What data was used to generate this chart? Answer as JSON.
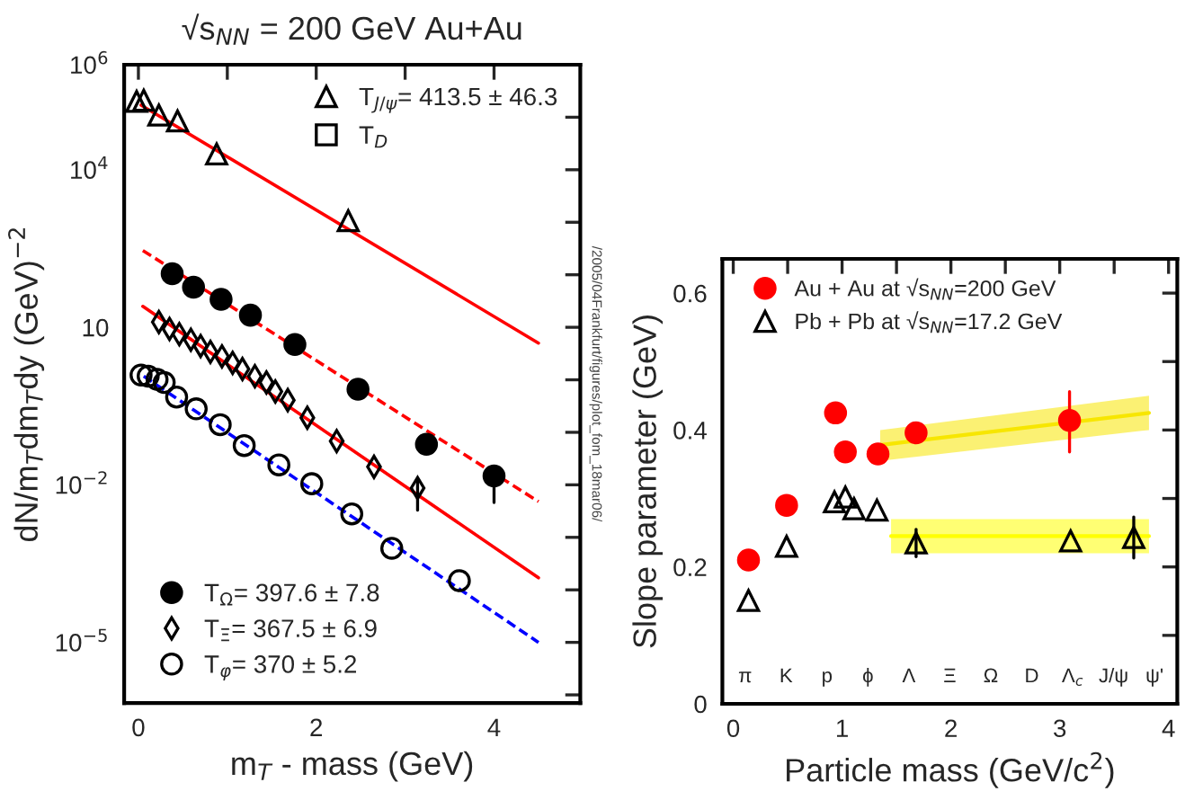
{
  "chart_data": [
    {
      "type": "scatter",
      "title": "√s$_{NN}$ = 200 GeV Au+Au",
      "xlabel": "m$_{T}$ - mass (GeV)",
      "ylabel": "dN/m$_{T}$dm$_{T}$dy (GeV)$^{−2}$",
      "log": "y",
      "legend": "top right",
      "xlim": [
        -0.16,
        4.97
      ],
      "xticks": [
        0,
        {
          "value": 1,
          "label": null
        },
        2,
        {
          "value": 3,
          "label": null
        },
        4
      ],
      "ylim": [
        7e-07,
        1000000.0
      ],
      "yticks": [
        {
          "value": 1e-06,
          "label": null
        },
        {
          "value": 1e-05,
          "label": "10$^{−5}$"
        },
        {
          "value": 0.0001,
          "label": null
        },
        {
          "value": 0.001,
          "label": null
        },
        {
          "value": 0.01,
          "label": "10$^{−2}$"
        },
        {
          "value": 0.1,
          "label": null
        },
        {
          "value": 1,
          "label": null
        },
        {
          "value": 10,
          "label": "10"
        },
        {
          "value": 100,
          "label": null
        },
        {
          "value": 1000,
          "label": null
        },
        {
          "value": 10000.0,
          "label": "10$^{4}$"
        },
        {
          "value": 100000.0,
          "label": null
        },
        {
          "value": 1000000.0,
          "label": "10$^{6}$"
        }
      ],
      "annotations": [
        "/2005/04Frankfurt/figures/plot_fom_18mar06/"
      ],
      "series": [
        {
          "name": "T$_{J/ψ}$= 413.5 ± 46.3",
          "marker": "triangle",
          "color": "#000000",
          "x": [
            -0.02,
            0.06,
            0.23,
            0.44,
            0.88,
            2.36
          ],
          "values": [
            200000.0,
            210000.0,
            110000.0,
            85000.0,
            20000.0,
            1070.0
          ]
        },
        {
          "name": "T$_{D}$",
          "marker": "square",
          "color": "#000000"
        },
        {
          "name": "T$_{Ω}$= 397.6 ± 7.8",
          "marker": "circle",
          "color": "#000000",
          "x": [
            0.38,
            0.62,
            0.93,
            1.26,
            1.76,
            2.47,
            3.24,
            4.0
          ],
          "values": [
            105,
            58,
            34,
            17,
            4.7,
            0.66,
            0.059,
            0.0148
          ],
          "errors": [
            null,
            null,
            null,
            null,
            null,
            null,
            null,
            [
              0.0046,
              0.022
            ]
          ]
        },
        {
          "name": "T$_{Ξ}$= 367.5 ± 6.9",
          "marker": "diamond",
          "color": "#000000",
          "x": [
            0.23,
            0.35,
            0.46,
            0.59,
            0.7,
            0.81,
            0.94,
            1.06,
            1.17,
            1.31,
            1.44,
            1.54,
            1.68,
            1.9,
            2.23,
            2.65,
            3.14
          ],
          "values": [
            12.6,
            9.3,
            7.4,
            5.8,
            4.4,
            3.4,
            2.8,
            2.1,
            1.6,
            1.17,
            0.89,
            0.6,
            0.41,
            0.19,
            0.068,
            0.022,
            0.0087
          ],
          "errors": [
            null,
            null,
            null,
            null,
            null,
            null,
            null,
            null,
            null,
            null,
            null,
            null,
            null,
            null,
            null,
            null,
            [
              0.0033,
              0.0126
            ]
          ]
        },
        {
          "name": "T$_{φ}$= 370 ± 5.2",
          "marker": "circle",
          "color": "#000000",
          "x": [
            0.03,
            0.11,
            0.21,
            0.29,
            0.43,
            0.65,
            0.92,
            1.19,
            1.58,
            1.95,
            2.4,
            2.85,
            3.61
          ],
          "values": [
            1.23,
            1.17,
            1.02,
            0.89,
            0.47,
            0.28,
            0.14,
            0.056,
            0.024,
            0.0105,
            0.0028,
            0.00062,
            0.00015
          ]
        },
        {
          "type": "line",
          "line_style": "solid",
          "color": "#ff0000",
          "x": [
            0.03,
            4.5
          ],
          "values": [
            170000.0,
            5.0
          ]
        },
        {
          "type": "line",
          "line_style": "dashed",
          "color": "#ff0000",
          "x": [
            0.05,
            4.5
          ],
          "values": [
            290,
            0.0048
          ]
        },
        {
          "type": "line",
          "line_style": "solid",
          "color": "#ff0000",
          "x": [
            0.05,
            4.5
          ],
          "values": [
            25,
            0.00017
          ]
        },
        {
          "type": "line",
          "line_style": "dashed",
          "color": "#0000ff",
          "x": [
            0.06,
            4.5
          ],
          "values": [
            1.17,
            1e-05
          ]
        }
      ]
    },
    {
      "type": "scatter",
      "xlabel": "Particle mass (GeV/c$^{2}$)",
      "ylabel": "Slope parameter (GeV)",
      "legend": "top left",
      "xlim": [
        -0.1,
        4.08
      ],
      "xticks": [
        0,
        {
          "value": 0.5,
          "label": null
        },
        1,
        {
          "value": 1.5,
          "label": null
        },
        2,
        {
          "value": 2.5,
          "label": null
        },
        3,
        {
          "value": 3.5,
          "label": null
        },
        4
      ],
      "annotations": [
        "π",
        "K",
        "p",
        "ϕ",
        "Λ",
        "Ξ",
        "Ω",
        "D",
        "Λ$_{c}$",
        "J/ψ",
        "ψ'"
      ],
      "ylim": [
        0,
        0.65
      ],
      "yticks": [
        0,
        {
          "value": 0.1,
          "label": null
        },
        0.2,
        {
          "value": 0.3,
          "label": null
        },
        0.4,
        {
          "value": 0.5,
          "label": null
        },
        0.6
      ],
      "series": [
        {
          "type": "line",
          "color": "#f7e600",
          "x": [
            1.35,
            3.82
          ],
          "lower": [
            0.355,
            0.4
          ],
          "values": [
            0.378,
            0.425
          ],
          "upper": [
            0.4,
            0.45
          ]
        },
        {
          "type": "line",
          "color": "#ffff00",
          "x": [
            1.45,
            3.82
          ],
          "lower": [
            0.22,
            0.22
          ],
          "values": [
            0.245,
            0.245
          ],
          "upper": [
            0.27,
            0.27
          ]
        },
        {
          "name": "Au + Au at √s$_{NN}$=200 GeV",
          "marker": "circle",
          "color": "#ff0000",
          "x": [
            0.14,
            0.49,
            0.94,
            1.03,
            1.33,
            1.68,
            3.09
          ],
          "values": [
            0.21,
            0.29,
            0.425,
            0.368,
            0.365,
            0.396,
            0.414
          ],
          "errors": [
            null,
            null,
            null,
            null,
            null,
            null,
            [
              0.368,
              0.456
            ]
          ]
        },
        {
          "name": "Pb + Pb at √s$_{NN}$=17.2 GeV",
          "marker": "triangle",
          "color": "#000000",
          "x": [
            0.14,
            0.49,
            0.93,
            1.03,
            1.11,
            1.32,
            1.68,
            3.1,
            3.68
          ],
          "values": [
            0.151,
            0.23,
            0.295,
            0.302,
            0.285,
            0.283,
            0.235,
            0.238,
            0.243
          ],
          "errors": [
            null,
            null,
            null,
            null,
            null,
            null,
            [
              0.215,
              0.255
            ],
            null,
            [
              0.213,
              0.273
            ]
          ]
        }
      ]
    }
  ]
}
